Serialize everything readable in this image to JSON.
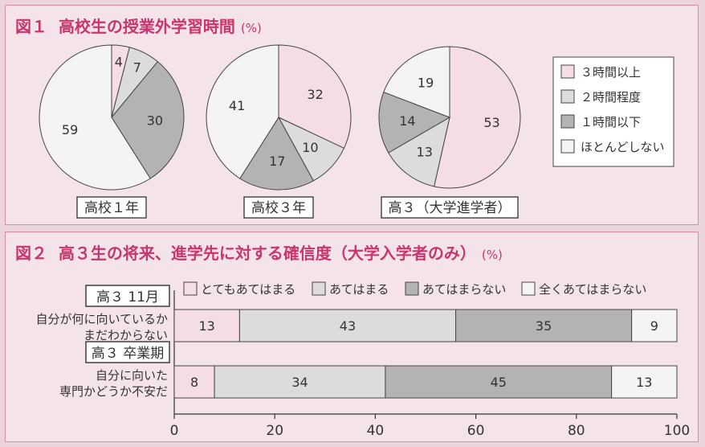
{
  "colors": {
    "pink": "#f5dde6",
    "light": "#dcdcdc",
    "mid": "#b3b3b3",
    "white": "#f4f4f4",
    "title": "#c8356f",
    "border": "#d98aa8"
  },
  "fig1": {
    "title_num": "図１",
    "title_text": "高校生の授業外学習時間",
    "unit": "(%)",
    "legend": [
      {
        "label": "３時間以上",
        "color": "#f5dde6"
      },
      {
        "label": "２時間程度",
        "color": "#dcdcdc"
      },
      {
        "label": "１時間以下",
        "color": "#b3b3b3"
      },
      {
        "label": "ほとんどしない",
        "color": "#f4f4f4"
      }
    ]
  },
  "fig2": {
    "title_num": "図２",
    "title_text": "高３生の将来、進学先に対する確信度（大学入学者のみ）",
    "unit": "(%)",
    "legend": [
      {
        "label": "とてもあてはまる",
        "color": "#f5dde6"
      },
      {
        "label": "あてはまる",
        "color": "#dcdcdc"
      },
      {
        "label": "あてはまらない",
        "color": "#b3b3b3"
      },
      {
        "label": "全くあてはまらない",
        "color": "#f4f4f4"
      }
    ]
  },
  "chart_data": [
    {
      "type": "pie",
      "title": "高校１年",
      "categories": [
        "３時間以上",
        "２時間程度",
        "１時間以下",
        "ほとんどしない"
      ],
      "values": [
        4,
        7,
        30,
        59
      ]
    },
    {
      "type": "pie",
      "title": "高校３年",
      "categories": [
        "３時間以上",
        "２時間程度",
        "１時間以下",
        "ほとんどしない"
      ],
      "values": [
        32,
        10,
        17,
        41
      ]
    },
    {
      "type": "pie",
      "title": "高３（大学進学者）",
      "categories": [
        "３時間以上",
        "２時間程度",
        "１時間以下",
        "ほとんどしない"
      ],
      "values": [
        53,
        13,
        14,
        19
      ]
    },
    {
      "type": "bar",
      "orientation": "horizontal",
      "stacked": true,
      "categories": [
        "高３ 11月",
        "高３ 卒業期"
      ],
      "category_sublabels": [
        [
          "自分が何に向いているか",
          "まだわからない"
        ],
        [
          "自分に向いた",
          "専門かどうか不安だ"
        ]
      ],
      "series": [
        {
          "name": "とてもあてはまる",
          "values": [
            13,
            8
          ]
        },
        {
          "name": "あてはまる",
          "values": [
            43,
            34
          ]
        },
        {
          "name": "あてはまらない",
          "values": [
            35,
            45
          ]
        },
        {
          "name": "全くあてはまらない",
          "values": [
            9,
            13
          ]
        }
      ],
      "xlim": [
        0,
        100
      ],
      "xticks": [
        0,
        20,
        40,
        60,
        80,
        100
      ]
    }
  ]
}
